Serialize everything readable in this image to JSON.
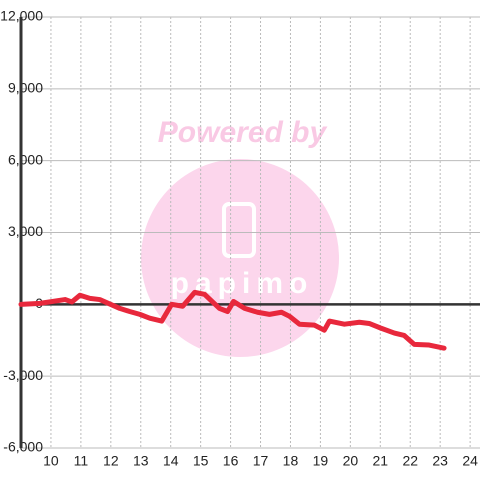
{
  "chart_data": {
    "type": "line",
    "watermark": {
      "text": "Powered by",
      "logo": "papimo"
    },
    "x": [
      9,
      9.63,
      10.47,
      10.7,
      10.97,
      11.3,
      11.63,
      12.3,
      12.63,
      12.97,
      13.3,
      13.7,
      14.03,
      14.4,
      14.8,
      15.13,
      15.63,
      15.9,
      16.1,
      16.47,
      16.9,
      17.3,
      17.7,
      17.97,
      18.3,
      18.8,
      19.13,
      19.3,
      19.8,
      20.3,
      20.63,
      21.03,
      21.47,
      21.8,
      22.13,
      22.63,
      23.13
    ],
    "series": [
      {
        "color": "#e8283c",
        "values": [
          0,
          40,
          200,
          100,
          380,
          250,
          200,
          -170,
          -300,
          -420,
          -580,
          -700,
          0,
          -80,
          500,
          420,
          -170,
          -300,
          120,
          -170,
          -330,
          -420,
          -330,
          -500,
          -830,
          -870,
          -1080,
          -700,
          -830,
          -750,
          -800,
          -1000,
          -1200,
          -1300,
          -1670,
          -1700,
          -1830
        ]
      }
    ],
    "xlim": [
      9,
      24.33
    ],
    "xticks": [
      10,
      11,
      12,
      13,
      14,
      15,
      16,
      17,
      18,
      19,
      20,
      21,
      22,
      23,
      24
    ],
    "ylim": [
      -6000,
      12000
    ],
    "yticks": [
      {
        "value": -6000,
        "label": "-6,000"
      },
      {
        "value": -3000,
        "label": "-3,000"
      },
      0,
      {
        "value": 3000,
        "label": "3,000"
      },
      {
        "value": 6000,
        "label": "6,000"
      },
      {
        "value": 9000,
        "label": "9,000"
      },
      {
        "value": 12000,
        "label": "12,000"
      }
    ],
    "grid": true
  }
}
